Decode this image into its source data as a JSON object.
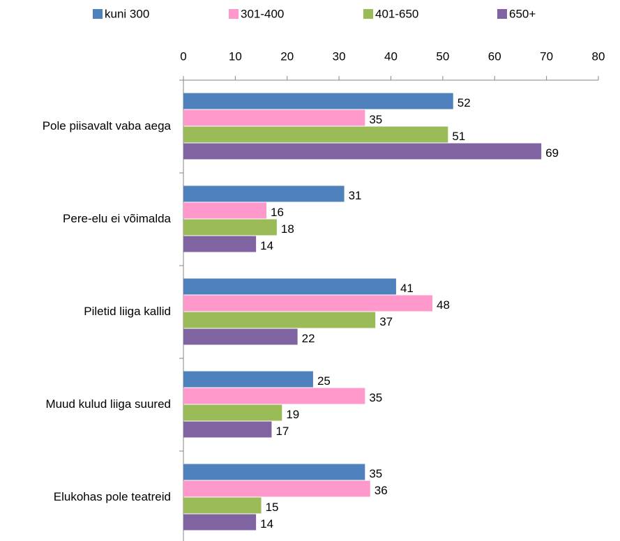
{
  "chart_data": {
    "type": "bar",
    "orientation": "horizontal",
    "categories": [
      "Pole piisavalt vaba aega",
      "Pere-elu ei võimalda",
      "Piletid liiga kallid",
      "Muud kulud liiga suured",
      "Elukohas pole teatreid"
    ],
    "series": [
      {
        "name": "kuni 300",
        "color": "#4f81bd",
        "values": [
          52,
          31,
          41,
          25,
          35
        ]
      },
      {
        "name": "301-400",
        "color": "#ff99cc",
        "values": [
          35,
          16,
          48,
          35,
          36
        ]
      },
      {
        "name": "401-650",
        "color": "#9bbb59",
        "values": [
          51,
          18,
          37,
          19,
          15
        ]
      },
      {
        "name": "650+",
        "color": "#8064a2",
        "values": [
          69,
          14,
          22,
          17,
          14
        ]
      }
    ],
    "xlim": [
      0,
      80
    ],
    "xticks": [
      0,
      10,
      20,
      30,
      40,
      50,
      60,
      70,
      80
    ],
    "legend": "top",
    "data_labels": true
  }
}
